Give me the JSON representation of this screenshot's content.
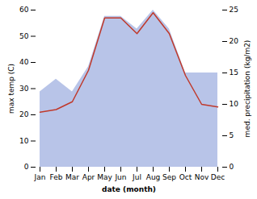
{
  "chart_data": {
    "type": "line",
    "categories": [
      "Jan",
      "Feb",
      "Mar",
      "Apr",
      "May",
      "Jun",
      "Jul",
      "Aug",
      "Sep",
      "Oct",
      "Nov",
      "Dec"
    ],
    "series": [
      {
        "type": "area",
        "axis": "y2",
        "color": "#b8c4e8",
        "values": [
          12,
          14,
          12,
          16,
          24,
          24,
          22,
          25,
          22,
          15,
          15,
          15
        ]
      },
      {
        "type": "line",
        "axis": "y",
        "color": "#c0392b",
        "values": [
          21,
          22,
          25,
          37,
          57,
          57,
          51,
          59,
          51,
          35,
          24,
          23
        ]
      }
    ],
    "xlabel": "date (month)",
    "ylabel": "max temp (C)",
    "y2label": "med. precipitation (kg/m2)",
    "ylim": [
      0,
      60
    ],
    "yticks": [
      0,
      10,
      20,
      30,
      40,
      50,
      60
    ],
    "y2lim": [
      0,
      25
    ],
    "y2ticks": [
      0,
      5,
      10,
      15,
      20,
      25
    ],
    "grid": false
  }
}
